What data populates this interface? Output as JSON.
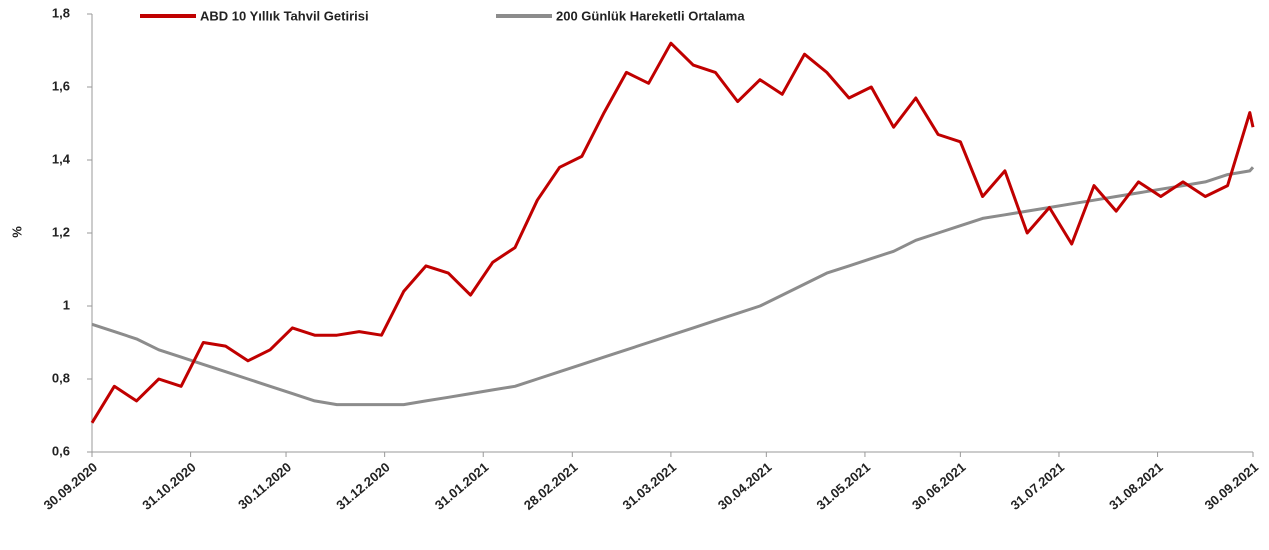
{
  "chart_data": {
    "type": "line",
    "ylabel": "%",
    "x": [
      "30.09.2020",
      "07.10.2020",
      "14.10.2020",
      "21.10.2020",
      "28.10.2020",
      "04.11.2020",
      "11.11.2020",
      "18.11.2020",
      "25.11.2020",
      "02.12.2020",
      "09.12.2020",
      "16.12.2020",
      "23.12.2020",
      "30.12.2020",
      "06.01.2021",
      "13.01.2021",
      "20.01.2021",
      "27.01.2021",
      "03.02.2021",
      "10.02.2021",
      "17.02.2021",
      "24.02.2021",
      "03.03.2021",
      "10.03.2021",
      "17.03.2021",
      "24.03.2021",
      "31.03.2021",
      "07.04.2021",
      "14.04.2021",
      "21.04.2021",
      "28.04.2021",
      "05.05.2021",
      "12.05.2021",
      "19.05.2021",
      "26.05.2021",
      "02.06.2021",
      "09.06.2021",
      "16.06.2021",
      "23.06.2021",
      "30.06.2021",
      "07.07.2021",
      "14.07.2021",
      "21.07.2021",
      "28.07.2021",
      "04.08.2021",
      "11.08.2021",
      "18.08.2021",
      "25.08.2021",
      "01.09.2021",
      "08.09.2021",
      "15.09.2021",
      "22.09.2021",
      "29.09.2021",
      "30.09.2021"
    ],
    "series": [
      {
        "name": "ABD 10 Yıllık Tahvil Getirisi",
        "color": "#c00000",
        "values": [
          0.68,
          0.78,
          0.74,
          0.8,
          0.78,
          0.9,
          0.89,
          0.85,
          0.88,
          0.94,
          0.92,
          0.92,
          0.93,
          0.92,
          1.04,
          1.11,
          1.09,
          1.03,
          1.12,
          1.16,
          1.29,
          1.38,
          1.41,
          1.53,
          1.64,
          1.61,
          1.72,
          1.66,
          1.64,
          1.56,
          1.62,
          1.58,
          1.69,
          1.64,
          1.57,
          1.6,
          1.49,
          1.57,
          1.47,
          1.45,
          1.3,
          1.37,
          1.2,
          1.27,
          1.17,
          1.33,
          1.26,
          1.34,
          1.3,
          1.34,
          1.3,
          1.33,
          1.53,
          1.49
        ]
      },
      {
        "name": "200 Günlük Hareketli Ortalama",
        "color": "#8c8c8c",
        "values": [
          0.95,
          0.93,
          0.91,
          0.88,
          0.86,
          0.84,
          0.82,
          0.8,
          0.78,
          0.76,
          0.74,
          0.73,
          0.73,
          0.73,
          0.73,
          0.74,
          0.75,
          0.76,
          0.77,
          0.78,
          0.8,
          0.82,
          0.84,
          0.86,
          0.88,
          0.9,
          0.92,
          0.94,
          0.96,
          0.98,
          1.0,
          1.03,
          1.06,
          1.09,
          1.11,
          1.13,
          1.15,
          1.18,
          1.2,
          1.22,
          1.24,
          1.25,
          1.26,
          1.27,
          1.28,
          1.29,
          1.3,
          1.31,
          1.32,
          1.33,
          1.34,
          1.36,
          1.37,
          1.38
        ]
      }
    ],
    "xlim": [
      "30.09.2020",
      "30.09.2021"
    ],
    "xticks": [
      "30.09.2020",
      "31.10.2020",
      "30.11.2020",
      "31.12.2020",
      "31.01.2021",
      "28.02.2021",
      "31.03.2021",
      "30.04.2021",
      "31.05.2021",
      "30.06.2021",
      "31.07.2021",
      "31.08.2021",
      "30.09.2021"
    ],
    "ylim": [
      0.6,
      1.8
    ],
    "yticks": [
      {
        "value": 0.6,
        "label": "0,6"
      },
      {
        "value": 0.8,
        "label": "0,8"
      },
      1,
      {
        "value": 1.2,
        "label": "1,2"
      },
      {
        "value": 1.4,
        "label": "1,4"
      },
      {
        "value": 1.6,
        "label": "1,6"
      },
      {
        "value": 1.8,
        "label": "1,8"
      }
    ],
    "legend": "top"
  }
}
